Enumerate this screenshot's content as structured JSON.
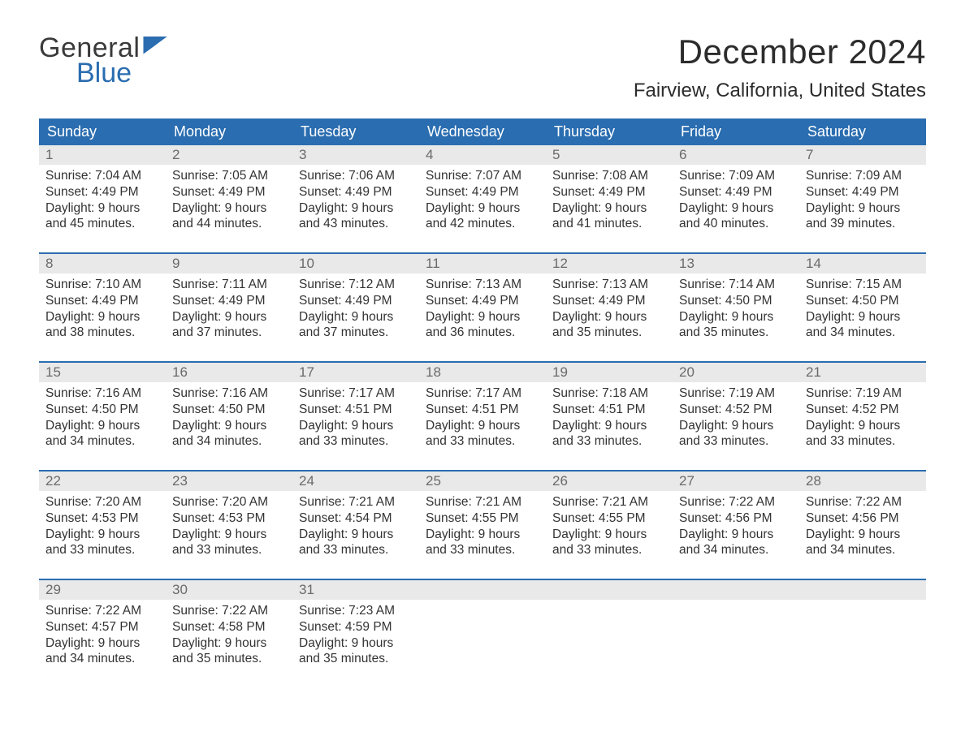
{
  "logo": {
    "word1": "General",
    "word2": "Blue"
  },
  "header": {
    "month_title": "December 2024",
    "location": "Fairview, California, United States"
  },
  "day_names": [
    "Sunday",
    "Monday",
    "Tuesday",
    "Wednesday",
    "Thursday",
    "Friday",
    "Saturday"
  ],
  "colors": {
    "header_bg": "#2a6db0",
    "header_text": "#ffffff",
    "date_bg": "#e9e9e9",
    "rule": "#2a6db0",
    "logo_accent": "#2a6db0",
    "body_text": "#333333"
  },
  "weeks": [
    [
      {
        "date": "1",
        "sunrise": "Sunrise: 7:04 AM",
        "sunset": "Sunset: 4:49 PM",
        "daylight1": "Daylight: 9 hours",
        "daylight2": "and 45 minutes."
      },
      {
        "date": "2",
        "sunrise": "Sunrise: 7:05 AM",
        "sunset": "Sunset: 4:49 PM",
        "daylight1": "Daylight: 9 hours",
        "daylight2": "and 44 minutes."
      },
      {
        "date": "3",
        "sunrise": "Sunrise: 7:06 AM",
        "sunset": "Sunset: 4:49 PM",
        "daylight1": "Daylight: 9 hours",
        "daylight2": "and 43 minutes."
      },
      {
        "date": "4",
        "sunrise": "Sunrise: 7:07 AM",
        "sunset": "Sunset: 4:49 PM",
        "daylight1": "Daylight: 9 hours",
        "daylight2": "and 42 minutes."
      },
      {
        "date": "5",
        "sunrise": "Sunrise: 7:08 AM",
        "sunset": "Sunset: 4:49 PM",
        "daylight1": "Daylight: 9 hours",
        "daylight2": "and 41 minutes."
      },
      {
        "date": "6",
        "sunrise": "Sunrise: 7:09 AM",
        "sunset": "Sunset: 4:49 PM",
        "daylight1": "Daylight: 9 hours",
        "daylight2": "and 40 minutes."
      },
      {
        "date": "7",
        "sunrise": "Sunrise: 7:09 AM",
        "sunset": "Sunset: 4:49 PM",
        "daylight1": "Daylight: 9 hours",
        "daylight2": "and 39 minutes."
      }
    ],
    [
      {
        "date": "8",
        "sunrise": "Sunrise: 7:10 AM",
        "sunset": "Sunset: 4:49 PM",
        "daylight1": "Daylight: 9 hours",
        "daylight2": "and 38 minutes."
      },
      {
        "date": "9",
        "sunrise": "Sunrise: 7:11 AM",
        "sunset": "Sunset: 4:49 PM",
        "daylight1": "Daylight: 9 hours",
        "daylight2": "and 37 minutes."
      },
      {
        "date": "10",
        "sunrise": "Sunrise: 7:12 AM",
        "sunset": "Sunset: 4:49 PM",
        "daylight1": "Daylight: 9 hours",
        "daylight2": "and 37 minutes."
      },
      {
        "date": "11",
        "sunrise": "Sunrise: 7:13 AM",
        "sunset": "Sunset: 4:49 PM",
        "daylight1": "Daylight: 9 hours",
        "daylight2": "and 36 minutes."
      },
      {
        "date": "12",
        "sunrise": "Sunrise: 7:13 AM",
        "sunset": "Sunset: 4:49 PM",
        "daylight1": "Daylight: 9 hours",
        "daylight2": "and 35 minutes."
      },
      {
        "date": "13",
        "sunrise": "Sunrise: 7:14 AM",
        "sunset": "Sunset: 4:50 PM",
        "daylight1": "Daylight: 9 hours",
        "daylight2": "and 35 minutes."
      },
      {
        "date": "14",
        "sunrise": "Sunrise: 7:15 AM",
        "sunset": "Sunset: 4:50 PM",
        "daylight1": "Daylight: 9 hours",
        "daylight2": "and 34 minutes."
      }
    ],
    [
      {
        "date": "15",
        "sunrise": "Sunrise: 7:16 AM",
        "sunset": "Sunset: 4:50 PM",
        "daylight1": "Daylight: 9 hours",
        "daylight2": "and 34 minutes."
      },
      {
        "date": "16",
        "sunrise": "Sunrise: 7:16 AM",
        "sunset": "Sunset: 4:50 PM",
        "daylight1": "Daylight: 9 hours",
        "daylight2": "and 34 minutes."
      },
      {
        "date": "17",
        "sunrise": "Sunrise: 7:17 AM",
        "sunset": "Sunset: 4:51 PM",
        "daylight1": "Daylight: 9 hours",
        "daylight2": "and 33 minutes."
      },
      {
        "date": "18",
        "sunrise": "Sunrise: 7:17 AM",
        "sunset": "Sunset: 4:51 PM",
        "daylight1": "Daylight: 9 hours",
        "daylight2": "and 33 minutes."
      },
      {
        "date": "19",
        "sunrise": "Sunrise: 7:18 AM",
        "sunset": "Sunset: 4:51 PM",
        "daylight1": "Daylight: 9 hours",
        "daylight2": "and 33 minutes."
      },
      {
        "date": "20",
        "sunrise": "Sunrise: 7:19 AM",
        "sunset": "Sunset: 4:52 PM",
        "daylight1": "Daylight: 9 hours",
        "daylight2": "and 33 minutes."
      },
      {
        "date": "21",
        "sunrise": "Sunrise: 7:19 AM",
        "sunset": "Sunset: 4:52 PM",
        "daylight1": "Daylight: 9 hours",
        "daylight2": "and 33 minutes."
      }
    ],
    [
      {
        "date": "22",
        "sunrise": "Sunrise: 7:20 AM",
        "sunset": "Sunset: 4:53 PM",
        "daylight1": "Daylight: 9 hours",
        "daylight2": "and 33 minutes."
      },
      {
        "date": "23",
        "sunrise": "Sunrise: 7:20 AM",
        "sunset": "Sunset: 4:53 PM",
        "daylight1": "Daylight: 9 hours",
        "daylight2": "and 33 minutes."
      },
      {
        "date": "24",
        "sunrise": "Sunrise: 7:21 AM",
        "sunset": "Sunset: 4:54 PM",
        "daylight1": "Daylight: 9 hours",
        "daylight2": "and 33 minutes."
      },
      {
        "date": "25",
        "sunrise": "Sunrise: 7:21 AM",
        "sunset": "Sunset: 4:55 PM",
        "daylight1": "Daylight: 9 hours",
        "daylight2": "and 33 minutes."
      },
      {
        "date": "26",
        "sunrise": "Sunrise: 7:21 AM",
        "sunset": "Sunset: 4:55 PM",
        "daylight1": "Daylight: 9 hours",
        "daylight2": "and 33 minutes."
      },
      {
        "date": "27",
        "sunrise": "Sunrise: 7:22 AM",
        "sunset": "Sunset: 4:56 PM",
        "daylight1": "Daylight: 9 hours",
        "daylight2": "and 34 minutes."
      },
      {
        "date": "28",
        "sunrise": "Sunrise: 7:22 AM",
        "sunset": "Sunset: 4:56 PM",
        "daylight1": "Daylight: 9 hours",
        "daylight2": "and 34 minutes."
      }
    ],
    [
      {
        "date": "29",
        "sunrise": "Sunrise: 7:22 AM",
        "sunset": "Sunset: 4:57 PM",
        "daylight1": "Daylight: 9 hours",
        "daylight2": "and 34 minutes."
      },
      {
        "date": "30",
        "sunrise": "Sunrise: 7:22 AM",
        "sunset": "Sunset: 4:58 PM",
        "daylight1": "Daylight: 9 hours",
        "daylight2": "and 35 minutes."
      },
      {
        "date": "31",
        "sunrise": "Sunrise: 7:23 AM",
        "sunset": "Sunset: 4:59 PM",
        "daylight1": "Daylight: 9 hours",
        "daylight2": "and 35 minutes."
      },
      {
        "date": "",
        "sunrise": "",
        "sunset": "",
        "daylight1": "",
        "daylight2": ""
      },
      {
        "date": "",
        "sunrise": "",
        "sunset": "",
        "daylight1": "",
        "daylight2": ""
      },
      {
        "date": "",
        "sunrise": "",
        "sunset": "",
        "daylight1": "",
        "daylight2": ""
      },
      {
        "date": "",
        "sunrise": "",
        "sunset": "",
        "daylight1": "",
        "daylight2": ""
      }
    ]
  ]
}
